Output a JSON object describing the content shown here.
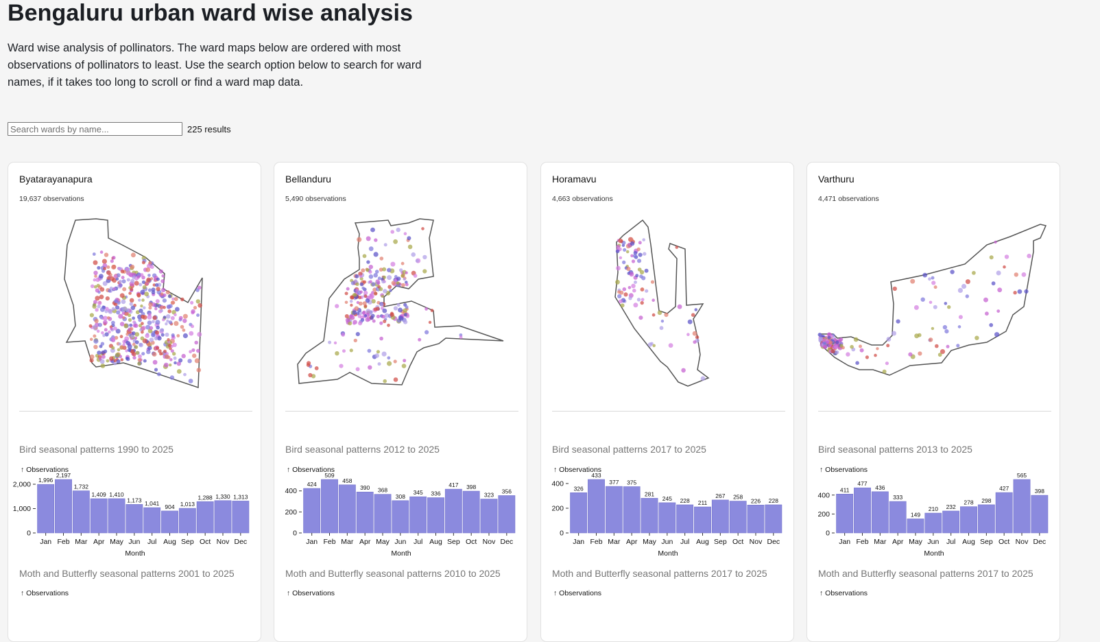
{
  "page": {
    "title": "Bengaluru urban ward wise analysis",
    "intro": "Ward wise analysis of pollinators. The ward maps below are ordered with most observations of pollinators to least. Use the search option below to search for ward names, if it takes too long to scroll or find a ward map data.",
    "search_placeholder": "Search wards by name...",
    "result_count": "225 results"
  },
  "colors": {
    "bar": "#8b8ade",
    "bar_stroke": "#6f6ec9",
    "boundary": "#555555",
    "dots": [
      "#c560d0",
      "#d47fe0",
      "#7f78dc",
      "#5a52c8",
      "#e08070",
      "#d04c46",
      "#a8a84a",
      "#b0a0e8"
    ]
  },
  "chart_data": [
    {
      "type": "bar",
      "ward": "Byatarayanapura",
      "observations_label": "19,637 observations",
      "title": "Bird seasonal patterns 1990 to 2025",
      "ylabel": "↑ Observations",
      "xlabel": "Month",
      "categories": [
        "Jan",
        "Feb",
        "Mar",
        "Apr",
        "May",
        "Jun",
        "Jul",
        "Aug",
        "Sep",
        "Oct",
        "Nov",
        "Dec"
      ],
      "values": [
        1996,
        2197,
        1732,
        1409,
        1410,
        1173,
        1041,
        904,
        1013,
        1288,
        1330,
        1313
      ],
      "value_labels": [
        "1,996",
        "2,197",
        "1,732",
        "1,409",
        "1,410",
        "1,173",
        "1,041",
        "904",
        "1,013",
        "1,288",
        "1,330",
        "1,313"
      ],
      "ylim": [
        0,
        2197
      ],
      "yticks": [
        0,
        1000,
        2000
      ],
      "ytick_labels": [
        "0",
        "1,000",
        "2,000"
      ],
      "next_title": "Moth and Butterfly seasonal patterns 2001 to 2025",
      "next_ylabel": "↑ Observations"
    },
    {
      "type": "bar",
      "ward": "Bellanduru",
      "observations_label": "5,490 observations",
      "title": "Bird seasonal patterns 2012 to 2025",
      "ylabel": "↑ Observations",
      "xlabel": "Month",
      "categories": [
        "Jan",
        "Feb",
        "Mar",
        "Apr",
        "May",
        "Jun",
        "Jul",
        "Aug",
        "Sep",
        "Oct",
        "Nov",
        "Dec"
      ],
      "values": [
        424,
        509,
        458,
        390,
        368,
        308,
        345,
        336,
        417,
        398,
        323,
        356
      ],
      "value_labels": [
        "424",
        "509",
        "458",
        "390",
        "368",
        "308",
        "345",
        "336",
        "417",
        "398",
        "323",
        "356"
      ],
      "ylim": [
        0,
        509
      ],
      "yticks": [
        0,
        200,
        400
      ],
      "ytick_labels": [
        "0",
        "200",
        "400"
      ],
      "next_title": "Moth and Butterfly seasonal patterns 2010 to 2025",
      "next_ylabel": "↑ Observations"
    },
    {
      "type": "bar",
      "ward": "Horamavu",
      "observations_label": "4,663 observations",
      "title": "Bird seasonal patterns 2017 to 2025",
      "ylabel": "↑ Observations",
      "xlabel": "Month",
      "categories": [
        "Jan",
        "Feb",
        "Mar",
        "Apr",
        "May",
        "Jun",
        "Jul",
        "Aug",
        "Sep",
        "Oct",
        "Nov",
        "Dec"
      ],
      "values": [
        326,
        433,
        377,
        375,
        281,
        245,
        228,
        211,
        267,
        258,
        226,
        228
      ],
      "value_labels": [
        "326",
        "433",
        "377",
        "375",
        "281",
        "245",
        "228",
        "211",
        "267",
        "258",
        "226",
        "228"
      ],
      "ylim": [
        0,
        433
      ],
      "yticks": [
        0,
        200,
        400
      ],
      "ytick_labels": [
        "0",
        "200",
        "400"
      ],
      "next_title": "Moth and Butterfly seasonal patterns 2017 to 2025",
      "next_ylabel": "↑ Observations"
    },
    {
      "type": "bar",
      "ward": "Varthuru",
      "observations_label": "4,471 observations",
      "title": "Bird seasonal patterns 2013 to 2025",
      "ylabel": "↑ Observations",
      "xlabel": "Month",
      "categories": [
        "Jan",
        "Feb",
        "Mar",
        "Apr",
        "May",
        "Jun",
        "Jul",
        "Aug",
        "Sep",
        "Oct",
        "Nov",
        "Dec"
      ],
      "values": [
        411,
        477,
        436,
        333,
        149,
        210,
        232,
        278,
        298,
        427,
        565,
        398
      ],
      "value_labels": [
        "411",
        "477",
        "436",
        "333",
        "149",
        "210",
        "232",
        "278",
        "298",
        "427",
        "565",
        "398"
      ],
      "ylim": [
        0,
        565
      ],
      "yticks": [
        0,
        200,
        400
      ],
      "ytick_labels": [
        "0",
        "200",
        "400"
      ],
      "next_title": "Moth and Butterfly seasonal patterns 2017 to 2025",
      "next_ylabel": "↑ Observations"
    }
  ]
}
